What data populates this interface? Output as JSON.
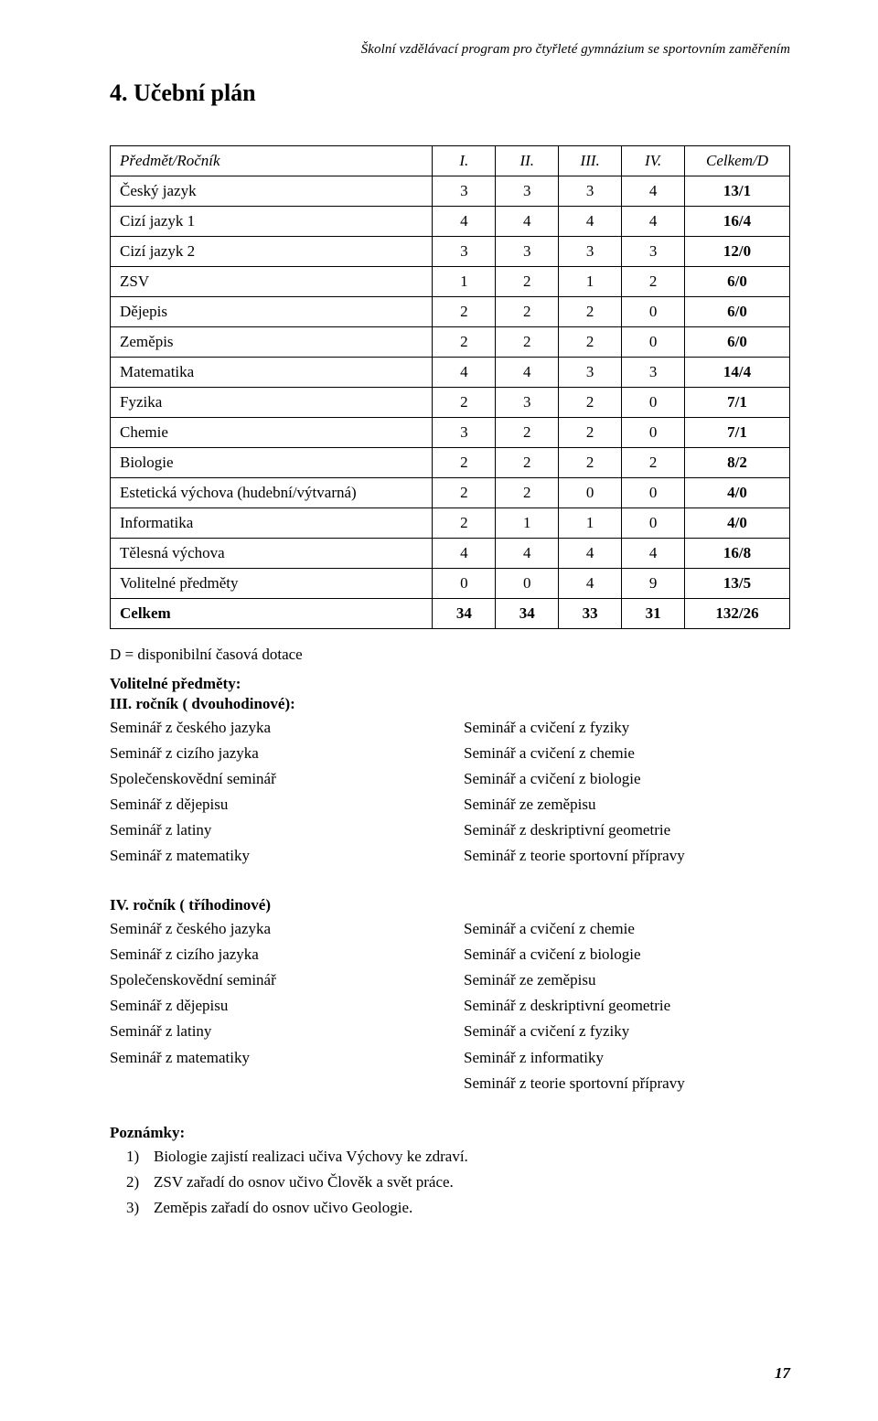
{
  "header": {
    "subtitle": "Školní vzdělávací program pro čtyřleté gymnázium se sportovním zaměřením",
    "section_title": "4. Učební plán"
  },
  "table": {
    "columns": [
      "Předmět/Ročník",
      "I.",
      "II.",
      "III.",
      "IV.",
      "Celkem/D"
    ],
    "rows": [
      {
        "subject": "Český jazyk",
        "v": [
          3,
          3,
          3,
          4
        ],
        "total": "13/1"
      },
      {
        "subject": "Cizí jazyk 1",
        "v": [
          4,
          4,
          4,
          4
        ],
        "total": "16/4"
      },
      {
        "subject": "Cizí jazyk 2",
        "v": [
          3,
          3,
          3,
          3
        ],
        "total": "12/0"
      },
      {
        "subject": "ZSV",
        "v": [
          1,
          2,
          1,
          2
        ],
        "total": "6/0"
      },
      {
        "subject": "Dějepis",
        "v": [
          2,
          2,
          2,
          0
        ],
        "total": "6/0"
      },
      {
        "subject": "Zeměpis",
        "v": [
          2,
          2,
          2,
          0
        ],
        "total": "6/0"
      },
      {
        "subject": "Matematika",
        "v": [
          4,
          4,
          3,
          3
        ],
        "total": "14/4"
      },
      {
        "subject": "Fyzika",
        "v": [
          2,
          3,
          2,
          0
        ],
        "total": "7/1"
      },
      {
        "subject": "Chemie",
        "v": [
          3,
          2,
          2,
          0
        ],
        "total": "7/1"
      },
      {
        "subject": "Biologie",
        "v": [
          2,
          2,
          2,
          2
        ],
        "total": "8/2"
      },
      {
        "subject": "Estetická výchova (hudební/výtvarná)",
        "v": [
          2,
          2,
          0,
          0
        ],
        "total": "4/0"
      },
      {
        "subject": "Informatika",
        "v": [
          2,
          1,
          1,
          0
        ],
        "total": "4/0"
      },
      {
        "subject": "Tělesná výchova",
        "v": [
          4,
          4,
          4,
          4
        ],
        "total": "16/8"
      },
      {
        "subject": "Volitelné předměty",
        "v": [
          0,
          0,
          4,
          9
        ],
        "total": "13/5"
      }
    ],
    "sum": {
      "subject": "Celkem",
      "v": [
        34,
        34,
        33,
        31
      ],
      "total": "132/26"
    }
  },
  "note_d": "D = disponibilní časová dotace",
  "block1": {
    "title1": "Volitelné předměty:",
    "title2": "III. ročník ( dvouhodinové):",
    "left": [
      "Seminář z českého jazyka",
      "Seminář z cizího jazyka",
      "Společenskovědní seminář",
      "Seminář z dějepisu",
      "Seminář z latiny",
      "Seminář z matematiky"
    ],
    "right": [
      "Seminář a cvičení z fyziky",
      "Seminář a cvičení z chemie",
      "Seminář a cvičení z biologie",
      "Seminář ze zeměpisu",
      "Seminář z deskriptivní geometrie",
      "Seminář z teorie sportovní přípravy"
    ]
  },
  "block2": {
    "title": "IV. ročník ( tříhodinové)",
    "left": [
      "Seminář z českého jazyka",
      "Seminář z cizího jazyka",
      "Společenskovědní seminář",
      "Seminář z dějepisu",
      "Seminář z latiny",
      "Seminář z matematiky",
      ""
    ],
    "right": [
      "Seminář a cvičení z chemie",
      "Seminář a cvičení z biologie",
      "Seminář ze zeměpisu",
      "Seminář z deskriptivní geometrie",
      "Seminář a cvičení z fyziky",
      "Seminář z informatiky",
      "Seminář z teorie sportovní přípravy"
    ]
  },
  "notes": {
    "title": "Poznámky:",
    "items": [
      "Biologie zajistí realizaci učiva Výchovy ke zdraví.",
      "ZSV zařadí do osnov učivo Člověk a svět práce.",
      "Zeměpis zařadí do osnov učivo Geologie."
    ]
  },
  "page_number": "17"
}
